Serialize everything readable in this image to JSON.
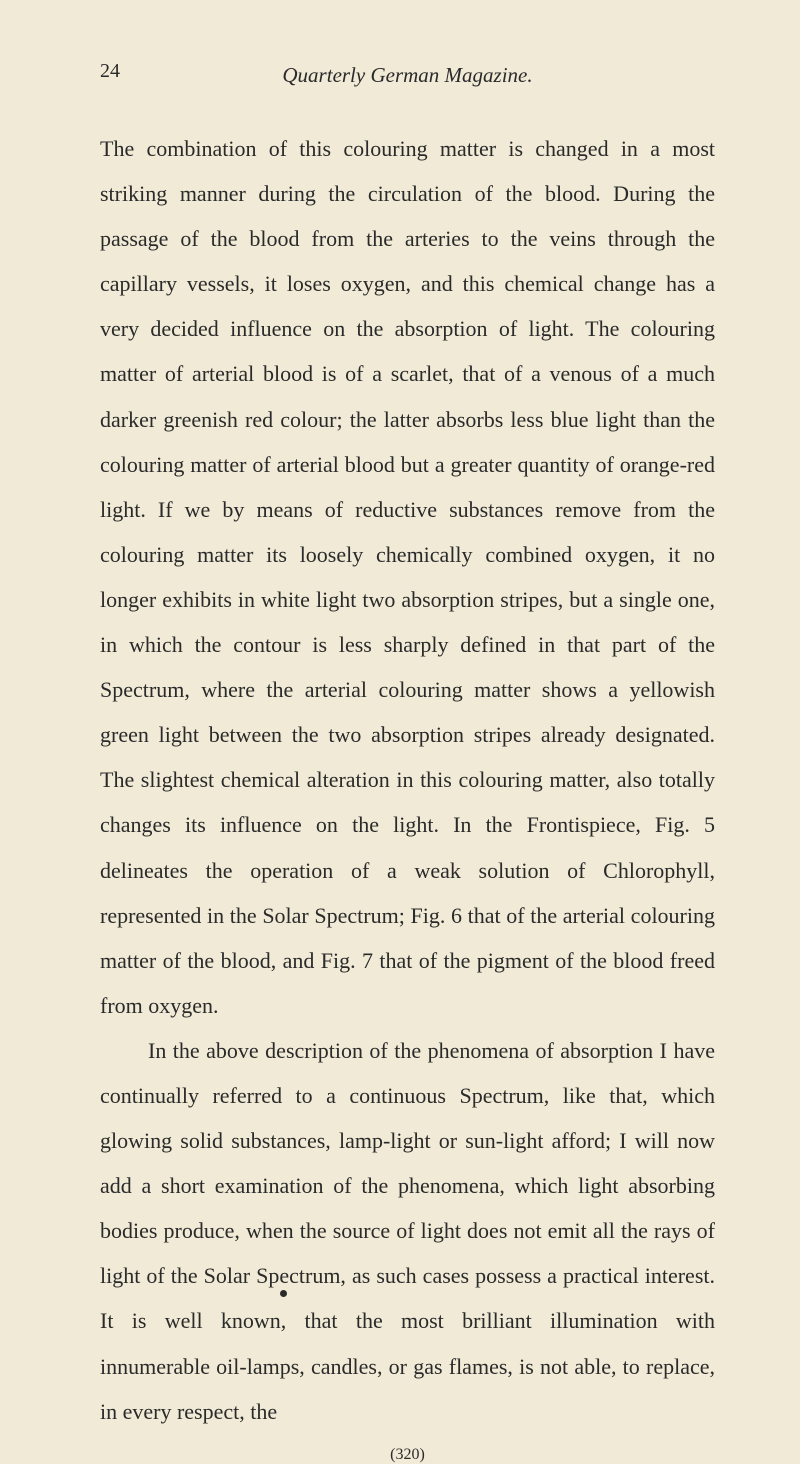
{
  "page_number": "24",
  "header": "Quarterly German Magazine.",
  "paragraphs": [
    "The combination of this colouring matter is changed in a most striking manner during the circulation of the blood. During the passage of the blood from the arteries to the veins through the capillary vessels, it loses oxygen, and this chemical change has a very decided influence on the absorption of light. The colouring matter of arterial blood is of a scarlet, that of a venous of a much darker greenish red colour; the latter absorbs less blue light than the colouring matter of arterial blood but a greater quantity of orange-red light. If we by means of reductive substances remove from the colouring matter its loosely chemically combined oxygen, it no longer exhibits in white light two absorption stripes, but a single one, in which the contour is less sharply defined in that part of the Spectrum, where the arterial colouring matter shows a yellowish green light between the two absorption stripes already designated. The slightest chemical alteration in this colouring matter, also totally changes its influence on the light. In the Frontispiece, Fig. 5 delineates the operation of a weak solution of Chlorophyll, represented in the Solar Spectrum; Fig. 6 that of the arterial colouring matter of the blood, and Fig. 7 that of the pigment of the blood freed from oxygen.",
    "In the above description of the phenomena of absorption I have continually referred to a continuous Spectrum, like that, which glowing solid substances, lamp-light or sun-light afford; I will now add a short examination of the phenomena, which light absorbing bodies produce, when the source of light does not emit all the rays of light of the Solar Spectrum, as such cases possess a practical interest. It is well known, that the most brilliant illumination with innumerable oil-lamps, candles, or gas flames, is not able, to replace, in every respect, the"
  ],
  "footer_number": "(320)",
  "styles": {
    "background_color": "#f0ead6",
    "text_color": "#2a2a2a",
    "body_font_size": 22,
    "line_height": 2.05,
    "header_font_size": 21,
    "page_num_font_size": 20
  }
}
